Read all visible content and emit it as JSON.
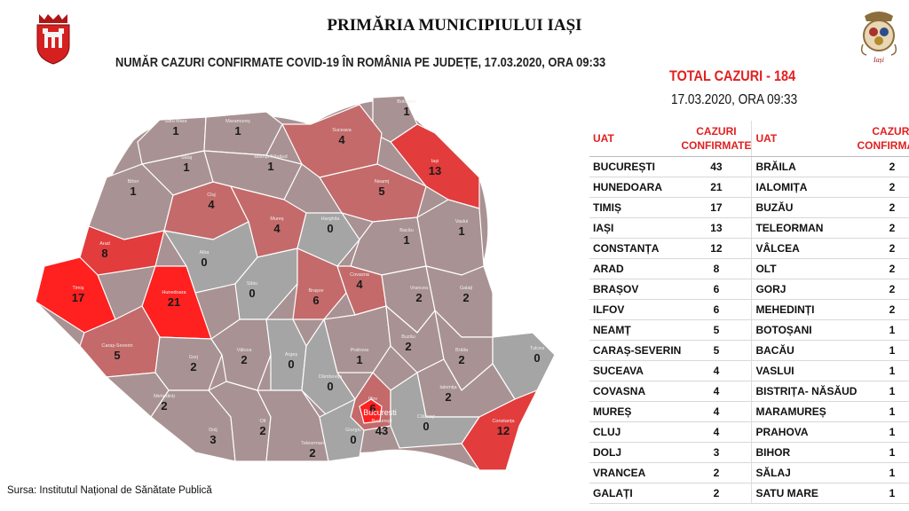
{
  "header": {
    "title": "PRIMĂRIA MUNICIPIULUI IAȘI",
    "subtitle": "NUMĂR CAZURI CONFIRMATE COVID-19 ÎN ROMÂNIA PE JUDEȚE, 17.03.2020, ORA 09:33"
  },
  "summary": {
    "total": "TOTAL CAZURI -  184",
    "date": "17.03.2020, ORA 09:33"
  },
  "logo_right": {
    "text": "Iași"
  },
  "table": {
    "col_uat": "UAT",
    "col_cases_1": "CAZURI",
    "col_cases_2": "CONFIRMATE",
    "rows": [
      {
        "l_name": "BUCUREȘTI",
        "l_val": "43",
        "r_name": "BRĂILA",
        "r_val": "2"
      },
      {
        "l_name": "HUNEDOARA",
        "l_val": "21",
        "r_name": "IALOMIȚA",
        "r_val": "2"
      },
      {
        "l_name": "TIMIȘ",
        "l_val": "17",
        "r_name": "BUZĂU",
        "r_val": "2"
      },
      {
        "l_name": "IAȘI",
        "l_val": "13",
        "r_name": "TELEORMAN",
        "r_val": "2"
      },
      {
        "l_name": "CONSTANȚA",
        "l_val": "12",
        "r_name": "VÂLCEA",
        "r_val": "2"
      },
      {
        "l_name": "ARAD",
        "l_val": "8",
        "r_name": "OLT",
        "r_val": "2"
      },
      {
        "l_name": "BRAȘOV",
        "l_val": "6",
        "r_name": "GORJ",
        "r_val": "2"
      },
      {
        "l_name": "ILFOV",
        "l_val": "6",
        "r_name": "MEHEDINȚI",
        "r_val": "2"
      },
      {
        "l_name": "NEAMȚ",
        "l_val": "5",
        "r_name": "BOTOȘANI",
        "r_val": "1"
      },
      {
        "l_name": "CARAȘ-SEVERIN",
        "l_val": "5",
        "r_name": "BACĂU",
        "r_val": "1"
      },
      {
        "l_name": "SUCEAVA",
        "l_val": "4",
        "r_name": "VASLUI",
        "r_val": "1"
      },
      {
        "l_name": "COVASNA",
        "l_val": "4",
        "r_name": "BISTRIȚA- NĂSĂUD",
        "r_val": "1"
      },
      {
        "l_name": "MUREȘ",
        "l_val": "4",
        "r_name": "MARAMUREȘ",
        "r_val": "1"
      },
      {
        "l_name": "CLUJ",
        "l_val": "4",
        "r_name": "PRAHOVA",
        "r_val": "1"
      },
      {
        "l_name": "DOLJ",
        "l_val": "3",
        "r_name": "BIHOR",
        "r_val": "1"
      },
      {
        "l_name": "VRANCEA",
        "l_val": "2",
        "r_name": "SĂLAJ",
        "r_val": "1"
      },
      {
        "l_name": "GALAȚI",
        "l_val": "2",
        "r_name": "SATU MARE",
        "r_val": "1"
      }
    ]
  },
  "map": {
    "bucharest_label": "București",
    "counties": [
      {
        "name": "Satu Mare",
        "value": "1"
      },
      {
        "name": "Maramureș",
        "value": "1"
      },
      {
        "name": "Botoșani",
        "value": "1"
      },
      {
        "name": "Suceava",
        "value": "4"
      },
      {
        "name": "Iași",
        "value": "13"
      },
      {
        "name": "Sălaj",
        "value": "1"
      },
      {
        "name": "Bistrița Năsăud",
        "value": "1"
      },
      {
        "name": "Neamț",
        "value": "5"
      },
      {
        "name": "Bihor",
        "value": "1"
      },
      {
        "name": "Cluj",
        "value": "4"
      },
      {
        "name": "Mureș",
        "value": "4"
      },
      {
        "name": "Harghita",
        "value": "0"
      },
      {
        "name": "Bacău",
        "value": "1"
      },
      {
        "name": "Vaslui",
        "value": "1"
      },
      {
        "name": "Arad",
        "value": "8"
      },
      {
        "name": "Alba",
        "value": "0"
      },
      {
        "name": "Timiș",
        "value": "17"
      },
      {
        "name": "Hunedoara",
        "value": "21"
      },
      {
        "name": "Sibiu",
        "value": "0"
      },
      {
        "name": "Brașov",
        "value": "6"
      },
      {
        "name": "Covasna",
        "value": "4"
      },
      {
        "name": "Vrancea",
        "value": "2"
      },
      {
        "name": "Galați",
        "value": "2"
      },
      {
        "name": "Caraș-Severin",
        "value": "5"
      },
      {
        "name": "Gorj",
        "value": "2"
      },
      {
        "name": "Vâlcea",
        "value": "2"
      },
      {
        "name": "Argeș",
        "value": "0"
      },
      {
        "name": "Prahova",
        "value": "1"
      },
      {
        "name": "Buzău",
        "value": "2"
      },
      {
        "name": "Brăila",
        "value": "2"
      },
      {
        "name": "Tulcea",
        "value": "0"
      },
      {
        "name": "Mehedinți",
        "value": "2"
      },
      {
        "name": "Dâmbovița",
        "value": "0"
      },
      {
        "name": "Ialomița",
        "value": "2"
      },
      {
        "name": "Dolj",
        "value": "3"
      },
      {
        "name": "Olt",
        "value": "2"
      },
      {
        "name": "Teleorman",
        "value": "2"
      },
      {
        "name": "Ilfov",
        "value": "6"
      },
      {
        "name": "București",
        "value": "43"
      },
      {
        "name": "Giurgiu",
        "value": "0"
      },
      {
        "name": "Călărași",
        "value": "0"
      },
      {
        "name": "Constanța",
        "value": "12"
      }
    ]
  },
  "source": "Sursa: Institutul Național de Sănătate Publică",
  "colors": {
    "accent_red": "#e02020",
    "high": "#ff2020",
    "mid_high": "#e23c3c",
    "mid": "#c46a6a",
    "low": "#a99293",
    "zero": "#a5a5a5"
  }
}
